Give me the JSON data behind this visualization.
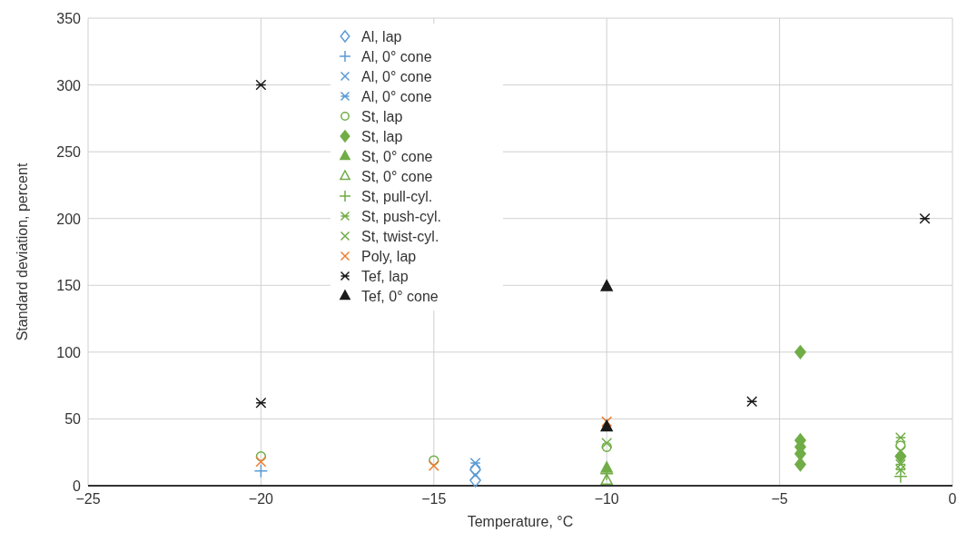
{
  "chart_data": {
    "type": "scatter",
    "xlabel": "Temperature, °C",
    "ylabel": "Standard deviation,  percent",
    "xlim": [
      -25,
      0
    ],
    "xticks": [
      {
        "value": -25,
        "label": "−25"
      },
      {
        "value": -20,
        "label": "−20"
      },
      {
        "value": -15,
        "label": "−15"
      },
      {
        "value": -10,
        "label": "−10"
      },
      {
        "value": -5,
        "label": "−5"
      },
      0
    ],
    "ylim": [
      0,
      350
    ],
    "yticks": [
      0,
      50,
      100,
      150,
      200,
      250,
      300,
      350
    ],
    "grid": true,
    "legend": "top left",
    "series": [
      {
        "name": "Al, lap",
        "color": "#5b9bd5",
        "marker": "diamond-open",
        "x": [
          -13.8,
          -13.8
        ],
        "values": [
          12,
          4
        ]
      },
      {
        "name": "Al, 0° cone",
        "color": "#5b9bd5",
        "marker": "plus",
        "x": [
          -20
        ],
        "values": [
          11
        ]
      },
      {
        "name": "Al, 0° cone",
        "color": "#5b9bd5",
        "marker": "x",
        "x": [
          -13.8
        ],
        "values": [
          8
        ]
      },
      {
        "name": "Al, 0° cone",
        "color": "#5b9bd5",
        "marker": "cross",
        "x": [
          -13.8
        ],
        "values": [
          17
        ]
      },
      {
        "name": "St, lap",
        "color": "#70ad47",
        "marker": "circle-open",
        "x": [
          -20,
          -15,
          -10,
          -1.5
        ],
        "values": [
          22,
          19,
          29,
          30
        ]
      },
      {
        "name": "St, lap",
        "color": "#70ad47",
        "marker": "diamond",
        "x": [
          -4.4,
          -4.4,
          -4.4,
          -4.4,
          -4.4,
          -1.5
        ],
        "values": [
          100,
          34,
          29,
          24,
          16,
          22
        ]
      },
      {
        "name": "St, 0° cone",
        "color": "#70ad47",
        "marker": "triangle",
        "x": [
          -10
        ],
        "values": [
          13
        ]
      },
      {
        "name": "St, 0° cone",
        "color": "#70ad47",
        "marker": "triangle-open",
        "x": [
          -10
        ],
        "values": [
          4
        ]
      },
      {
        "name": "St, pull-cyl.",
        "color": "#70ad47",
        "marker": "plus",
        "x": [
          -10,
          -1.5
        ],
        "values": [
          9,
          7
        ]
      },
      {
        "name": "St, push-cyl.",
        "color": "#70ad47",
        "marker": "cross",
        "x": [
          -1.5,
          -1.5,
          -1.5
        ],
        "values": [
          36,
          16,
          12
        ]
      },
      {
        "name": "St, twist-cyl.",
        "color": "#70ad47",
        "marker": "x",
        "x": [
          -10,
          -1.5
        ],
        "values": [
          32,
          26
        ]
      },
      {
        "name": "Poly, lap",
        "color": "#ed7d31",
        "marker": "x",
        "x": [
          -20,
          -15,
          -10
        ],
        "values": [
          18,
          15,
          48
        ]
      },
      {
        "name": "Tef, lap",
        "color": "#1a1a1a",
        "marker": "cross",
        "x": [
          -20,
          -20,
          -5.8,
          -0.8
        ],
        "values": [
          300,
          62,
          63,
          200
        ]
      },
      {
        "name": "Tef, 0° cone",
        "color": "#1a1a1a",
        "marker": "triangle",
        "x": [
          -10,
          -10
        ],
        "values": [
          149,
          44
        ]
      }
    ]
  }
}
